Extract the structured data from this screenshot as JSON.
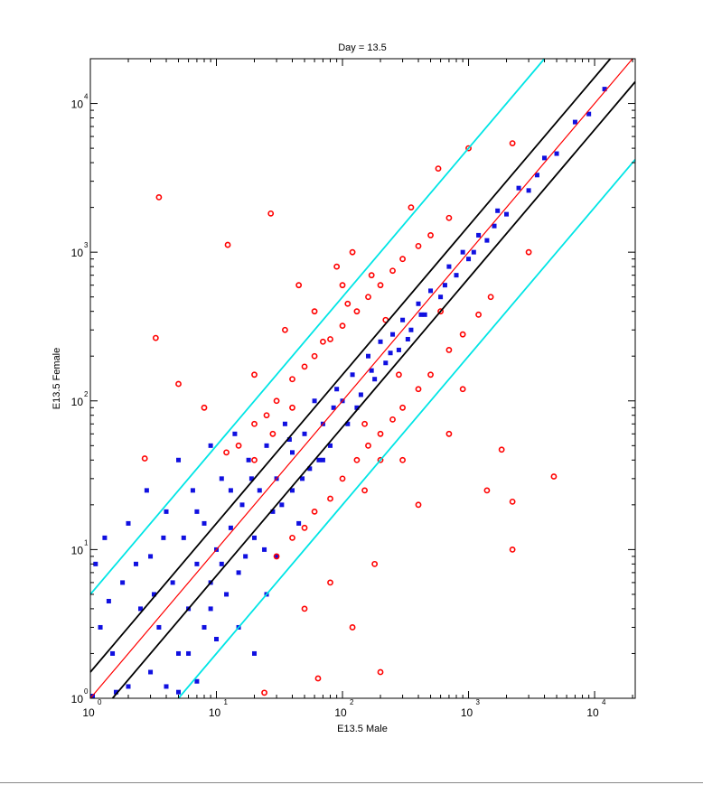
{
  "chart_data": {
    "type": "scatter",
    "title": "Day = 13.5",
    "xlabel": "E13.5 Male",
    "ylabel": "E13.5 Female",
    "xscale": "log",
    "yscale": "log",
    "xlim": [
      1,
      21000
    ],
    "ylim": [
      1,
      20000
    ],
    "grid": false,
    "tick_base": "10",
    "x_tick_exponents": [
      "0",
      "1",
      "2",
      "3",
      "4"
    ],
    "y_tick_exponents": [
      "0",
      "1",
      "2",
      "3",
      "4"
    ],
    "reference_lines": [
      {
        "fold": 1,
        "color": "#ff0000"
      },
      {
        "fold": 1.5,
        "color": "#000000"
      },
      {
        "fold": 0.6667,
        "color": "#000000"
      },
      {
        "fold": 5,
        "color": "#00e5e5"
      },
      {
        "fold": 0.2,
        "color": "#00e5e5"
      }
    ],
    "series": [
      {
        "color": "#1010e0",
        "marker": "dot",
        "points": [
          [
            1,
            1
          ],
          [
            1.2,
            3
          ],
          [
            1.1,
            8
          ],
          [
            1.3,
            12
          ],
          [
            1.5,
            2
          ],
          [
            1.8,
            6
          ],
          [
            2,
            1.2
          ],
          [
            2,
            15
          ],
          [
            2.5,
            4
          ],
          [
            2.8,
            25
          ],
          [
            3,
            1.5
          ],
          [
            3,
            9
          ],
          [
            3.5,
            3
          ],
          [
            4,
            18
          ],
          [
            4,
            1.2
          ],
          [
            4.5,
            6
          ],
          [
            5,
            2
          ],
          [
            5,
            40
          ],
          [
            5.5,
            12
          ],
          [
            6,
            4
          ],
          [
            6.5,
            25
          ],
          [
            7,
            1.3
          ],
          [
            7,
            8
          ],
          [
            8,
            15
          ],
          [
            8,
            3
          ],
          [
            9,
            50
          ],
          [
            9,
            6
          ],
          [
            10,
            10
          ],
          [
            10,
            2.5
          ],
          [
            11,
            30
          ],
          [
            12,
            5
          ],
          [
            13,
            14
          ],
          [
            14,
            60
          ],
          [
            15,
            3
          ],
          [
            16,
            20
          ],
          [
            17,
            9
          ],
          [
            18,
            40
          ],
          [
            20,
            12
          ],
          [
            20,
            2
          ],
          [
            22,
            25
          ],
          [
            25,
            5
          ],
          [
            25,
            50
          ],
          [
            28,
            18
          ],
          [
            30,
            30
          ],
          [
            30,
            9
          ],
          [
            35,
            70
          ],
          [
            40,
            25
          ],
          [
            40,
            45
          ],
          [
            45,
            15
          ],
          [
            50,
            60
          ],
          [
            55,
            35
          ],
          [
            60,
            100
          ],
          [
            65,
            40
          ],
          [
            70,
            70
          ],
          [
            80,
            50
          ],
          [
            90,
            120
          ],
          [
            100,
            100
          ],
          [
            110,
            70
          ],
          [
            120,
            150
          ],
          [
            140,
            110
          ],
          [
            160,
            200
          ],
          [
            180,
            140
          ],
          [
            200,
            250
          ],
          [
            220,
            180
          ],
          [
            250,
            280
          ],
          [
            280,
            220
          ],
          [
            300,
            350
          ],
          [
            350,
            300
          ],
          [
            400,
            450
          ],
          [
            450,
            380
          ],
          [
            500,
            550
          ],
          [
            600,
            500
          ],
          [
            700,
            800
          ],
          [
            800,
            700
          ],
          [
            900,
            1000
          ],
          [
            1000,
            900
          ],
          [
            1200,
            1300
          ],
          [
            1400,
            1200
          ],
          [
            1700,
            1900
          ],
          [
            2000,
            1800
          ],
          [
            2500,
            2700
          ],
          [
            3000,
            2600
          ],
          [
            4000,
            4300
          ],
          [
            5000,
            4600
          ],
          [
            7000,
            7500
          ],
          [
            9000,
            8500
          ],
          [
            12000,
            12500
          ],
          [
            1.4,
            4.5
          ],
          [
            1.6,
            1.1
          ],
          [
            2.3,
            8
          ],
          [
            3.2,
            5
          ],
          [
            3.8,
            12
          ],
          [
            5,
            1.1
          ],
          [
            6,
            2
          ],
          [
            7,
            18
          ],
          [
            9,
            4
          ],
          [
            11,
            8
          ],
          [
            13,
            25
          ],
          [
            15,
            7
          ],
          [
            19,
            30
          ],
          [
            24,
            10
          ],
          [
            33,
            20
          ],
          [
            38,
            55
          ],
          [
            48,
            30
          ],
          [
            70,
            40
          ],
          [
            85,
            90
          ],
          [
            130,
            90
          ],
          [
            170,
            160
          ],
          [
            240,
            210
          ],
          [
            330,
            260
          ],
          [
            420,
            380
          ],
          [
            650,
            600
          ],
          [
            1100,
            1000
          ],
          [
            1600,
            1500
          ],
          [
            3500,
            3300
          ]
        ]
      },
      {
        "color": "#ff0000",
        "marker": "open-circle",
        "points": [
          [
            3.5,
            2340
          ],
          [
            12.3,
            1120
          ],
          [
            27,
            1820
          ],
          [
            3.3,
            265
          ],
          [
            2.7,
            41
          ],
          [
            2230,
            5400
          ],
          [
            575,
            3650
          ],
          [
            1830,
            47
          ],
          [
            4750,
            31
          ],
          [
            2230,
            10
          ],
          [
            2230,
            21
          ],
          [
            64,
            1.36
          ],
          [
            200,
            1.5
          ],
          [
            24,
            1.09
          ],
          [
            1400,
            25
          ],
          [
            12,
            45
          ],
          [
            15,
            50
          ],
          [
            20,
            70
          ],
          [
            25,
            80
          ],
          [
            30,
            100
          ],
          [
            40,
            140
          ],
          [
            50,
            170
          ],
          [
            60,
            200
          ],
          [
            80,
            260
          ],
          [
            100,
            320
          ],
          [
            130,
            400
          ],
          [
            160,
            500
          ],
          [
            200,
            600
          ],
          [
            250,
            750
          ],
          [
            300,
            900
          ],
          [
            400,
            1100
          ],
          [
            500,
            1300
          ],
          [
            700,
            1700
          ],
          [
            30,
            9
          ],
          [
            40,
            12
          ],
          [
            50,
            14
          ],
          [
            60,
            18
          ],
          [
            80,
            22
          ],
          [
            100,
            30
          ],
          [
            130,
            40
          ],
          [
            160,
            50
          ],
          [
            200,
            60
          ],
          [
            250,
            75
          ],
          [
            300,
            90
          ],
          [
            400,
            120
          ],
          [
            500,
            150
          ],
          [
            700,
            220
          ],
          [
            900,
            280
          ],
          [
            1200,
            380
          ],
          [
            1500,
            500
          ],
          [
            100,
            600
          ],
          [
            200,
            40
          ],
          [
            60,
            400
          ],
          [
            300,
            40
          ],
          [
            150,
            25
          ],
          [
            20,
            150
          ],
          [
            3000,
            1000
          ],
          [
            50,
            4
          ],
          [
            8,
            90
          ],
          [
            5,
            130
          ],
          [
            35,
            300
          ],
          [
            45,
            600
          ],
          [
            120,
            1000
          ],
          [
            90,
            800
          ],
          [
            350,
            2000
          ],
          [
            180,
            8
          ],
          [
            400,
            20
          ],
          [
            120,
            3
          ],
          [
            700,
            60
          ],
          [
            900,
            120
          ],
          [
            80,
            6
          ],
          [
            1000,
            5000
          ],
          [
            20,
            40
          ],
          [
            28,
            60
          ],
          [
            70,
            250
          ],
          [
            110,
            450
          ],
          [
            170,
            700
          ],
          [
            220,
            350
          ],
          [
            600,
            400
          ],
          [
            280,
            150
          ],
          [
            40,
            90
          ],
          [
            150,
            70
          ]
        ]
      }
    ]
  }
}
